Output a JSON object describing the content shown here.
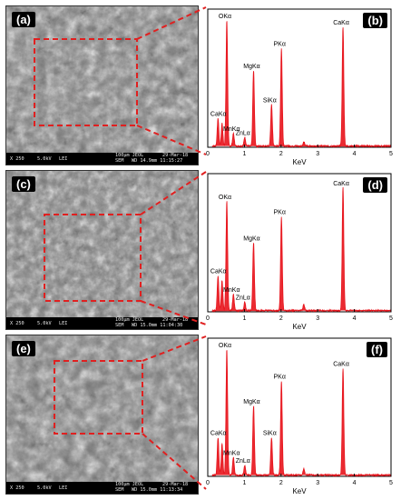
{
  "panels": [
    {
      "sem_label": "(a)",
      "spec_label": "(b)",
      "databar": {
        "mag": "X 250",
        "kv": "5.0kV",
        "mode": "LEI",
        "scale": "100µm JEOL",
        "date": "29-Mar-18",
        "det": "SEM",
        "wd": "WD 14.9mm 11:15:27"
      },
      "chart_data": {
        "type": "line",
        "xlabel": "KeV",
        "xlim": [
          0,
          5
        ],
        "xticks": [
          "0",
          "1",
          "2",
          "3",
          "4",
          "5"
        ],
        "series": [
          {
            "x": [
              0.28,
              0.39,
              0.52,
              0.7,
              1.01,
              1.25,
              1.74,
              2.01,
              2.62,
              3.69
            ],
            "y": [
              0.22,
              0.18,
              1.0,
              0.1,
              0.07,
              0.6,
              0.33,
              0.78,
              0.03,
              0.95
            ]
          }
        ],
        "peaks": [
          {
            "label": "CaKα",
            "x": 0.34,
            "y": 0.22
          },
          {
            "label": "OKα",
            "x": 0.52,
            "y": 1.0
          },
          {
            "label": "MnKα",
            "x": 0.7,
            "y": 0.1
          },
          {
            "label": "ZnLα",
            "x": 1.01,
            "y": 0.07
          },
          {
            "label": "MgKα",
            "x": 1.25,
            "y": 0.6
          },
          {
            "label": "SiKα",
            "x": 1.74,
            "y": 0.33
          },
          {
            "label": "PKα",
            "x": 2.01,
            "y": 0.78
          },
          {
            "label": "CaKα",
            "x": 3.69,
            "y": 0.95
          }
        ]
      }
    },
    {
      "sem_label": "(c)",
      "spec_label": "(d)",
      "databar": {
        "mag": "X 250",
        "kv": "5.0kV",
        "mode": "LEI",
        "scale": "100µm JEOL",
        "date": "29-Mar-18",
        "det": "SEM",
        "wd": "WD 15.0mm 11:04:30"
      },
      "chart_data": {
        "type": "line",
        "xlabel": "KeV",
        "xlim": [
          0,
          5
        ],
        "xticks": [
          "0",
          "1",
          "2",
          "3",
          "4",
          "5"
        ],
        "series": [
          {
            "x": [
              0.28,
              0.39,
              0.52,
              0.7,
              1.01,
              1.25,
              2.01,
              2.62,
              3.69
            ],
            "y": [
              0.28,
              0.24,
              0.87,
              0.13,
              0.07,
              0.54,
              0.75,
              0.05,
              0.98
            ]
          }
        ],
        "peaks": [
          {
            "label": "CaKα",
            "x": 0.34,
            "y": 0.28
          },
          {
            "label": "OKα",
            "x": 0.52,
            "y": 0.87
          },
          {
            "label": "MnKα",
            "x": 0.7,
            "y": 0.13
          },
          {
            "label": "ZnLα",
            "x": 1.01,
            "y": 0.07
          },
          {
            "label": "MgKα",
            "x": 1.25,
            "y": 0.54
          },
          {
            "label": "PKα",
            "x": 2.01,
            "y": 0.75
          },
          {
            "label": "CaKα",
            "x": 3.69,
            "y": 0.98
          }
        ]
      }
    },
    {
      "sem_label": "(e)",
      "spec_label": "(f)",
      "databar": {
        "mag": "X 250",
        "kv": "5.0kV",
        "mode": "LEI",
        "scale": "100µm JEOL",
        "date": "29-Mar-18",
        "det": "SEM",
        "wd": "WD 15.0mm 11:13:34"
      },
      "chart_data": {
        "type": "line",
        "xlabel": "KeV",
        "xlim": [
          0,
          5
        ],
        "xticks": [
          "0",
          "1",
          "2",
          "3",
          "4",
          "5"
        ],
        "series": [
          {
            "x": [
              0.28,
              0.39,
              0.52,
              0.7,
              1.01,
              1.25,
              1.74,
              2.01,
              2.62,
              3.69
            ],
            "y": [
              0.3,
              0.25,
              1.0,
              0.14,
              0.08,
              0.55,
              0.3,
              0.75,
              0.05,
              0.85
            ]
          }
        ],
        "peaks": [
          {
            "label": "CaKα",
            "x": 0.34,
            "y": 0.3
          },
          {
            "label": "OKα",
            "x": 0.52,
            "y": 1.0
          },
          {
            "label": "MnKα",
            "x": 0.7,
            "y": 0.14
          },
          {
            "label": "ZnLα",
            "x": 1.01,
            "y": 0.08
          },
          {
            "label": "MgKα",
            "x": 1.25,
            "y": 0.55
          },
          {
            "label": "SiKα",
            "x": 1.74,
            "y": 0.3
          },
          {
            "label": "PKα",
            "x": 2.01,
            "y": 0.75
          },
          {
            "label": "CaKα",
            "x": 3.69,
            "y": 0.85
          }
        ]
      }
    }
  ],
  "colors": {
    "spectrum": "#e8141c",
    "frame": "#000000",
    "zoom_box": "#e02020"
  }
}
